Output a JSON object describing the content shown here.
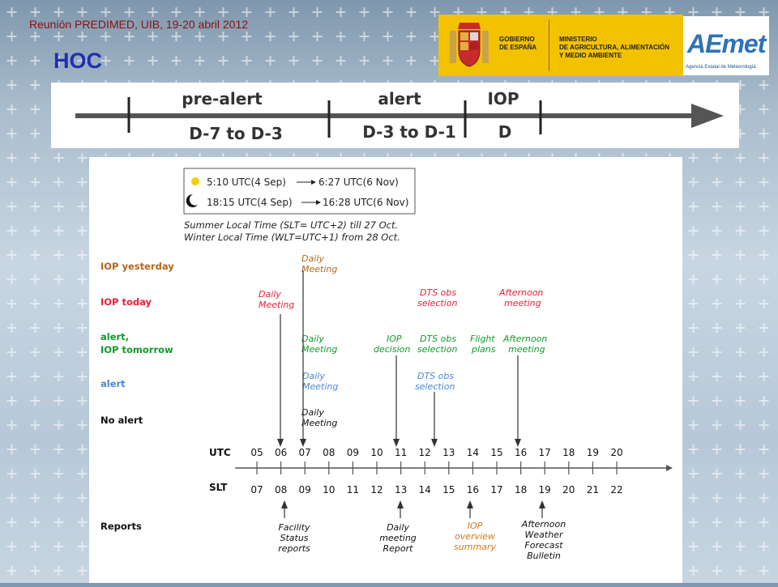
{
  "header": {
    "meeting": "Reunión PREDIMED, UIB, 19-20 abril 2012",
    "title": "HOC"
  },
  "logos": {
    "gov_line1": "GOBIERNO",
    "gov_line2": "DE ESPAÑA",
    "min_line1": "MINISTERIO",
    "min_line2": "DE AGRICULTURA, ALIMENTACIÓN",
    "min_line3": "Y MEDIO AMBIENTE",
    "aemet": "AEmet",
    "aemet_sub": "Agencia Estatal de Meteorología",
    "band_color": "#f2c200"
  },
  "timeline": {
    "phases": [
      {
        "label": "pre-alert",
        "range": "D-7 to D-3"
      },
      {
        "label": "alert",
        "range": "D-3 to D-1"
      },
      {
        "label": "IOP",
        "range": "D"
      }
    ]
  },
  "schedule": {
    "sun": "5:10 UTC(4 Sep)",
    "sun_end": "6:27 UTC(6 Nov)",
    "moon": "18:15 UTC(4 Sep)",
    "moon_end": "16:28 UTC(6 Nov)",
    "slt_summer": "Summer Local Time (SLT= UTC+2) till 27 Oct.",
    "slt_winter": "Winter Local Time (WLT=UTC+1) from 28 Oct.",
    "categories": [
      {
        "label1": "IOP yesterday",
        "label2": "",
        "color": "#b5651d"
      },
      {
        "label1": "IOP today",
        "label2": "",
        "color": "#e8203a"
      },
      {
        "label1": "alert,",
        "label2": "IOP tomorrow",
        "color": "#109a28"
      },
      {
        "label1": "alert",
        "label2": "",
        "color": "#4a86d8"
      },
      {
        "label1": "No alert",
        "label2": "",
        "color": "#111111"
      }
    ],
    "events": {
      "daily_yesterday": [
        "Daily",
        "Meeting"
      ],
      "daily_today": [
        "Daily",
        "Meeting"
      ],
      "daily_alert": [
        "Daily",
        "Meeting"
      ],
      "daily_alert_blue": [
        "Daily",
        "Meeting"
      ],
      "daily_noalert": [
        "Daily",
        "Meeting"
      ],
      "dts_today": [
        "DTS obs",
        "selection"
      ],
      "afternoon_today": [
        "Afternoon",
        "meeting"
      ],
      "iop_decision": [
        "IOP",
        "decision"
      ],
      "dts_alert": [
        "DTS obs",
        "selection"
      ],
      "flight_plans": [
        "Flight",
        "plans"
      ],
      "afternoon_alert": [
        "Afternoon",
        "meeting"
      ],
      "dts_blue": [
        "DTS obs",
        "selection"
      ]
    },
    "utc_label": "UTC",
    "slt_label": "SLT",
    "utc_hours": [
      "05",
      "06",
      "07",
      "08",
      "09",
      "10",
      "11",
      "12",
      "13",
      "14",
      "15",
      "16",
      "17",
      "18",
      "19",
      "20"
    ],
    "slt_hours": [
      "07",
      "08",
      "09",
      "10",
      "11",
      "12",
      "13",
      "14",
      "15",
      "16",
      "17",
      "18",
      "19",
      "20",
      "21",
      "22"
    ],
    "reports_label": "Reports",
    "reports": [
      {
        "lines": [
          "Facility",
          "Status",
          "reports"
        ],
        "color": "#111111"
      },
      {
        "lines": [
          "Daily",
          "meeting",
          "Report"
        ],
        "color": "#111111"
      },
      {
        "lines": [
          "IOP",
          "overview",
          "summary"
        ],
        "color": "#d07a1a"
      },
      {
        "lines": [
          "Afternoon",
          "Weather",
          "Forecast",
          "Bulletin"
        ],
        "color": "#111111"
      }
    ]
  }
}
